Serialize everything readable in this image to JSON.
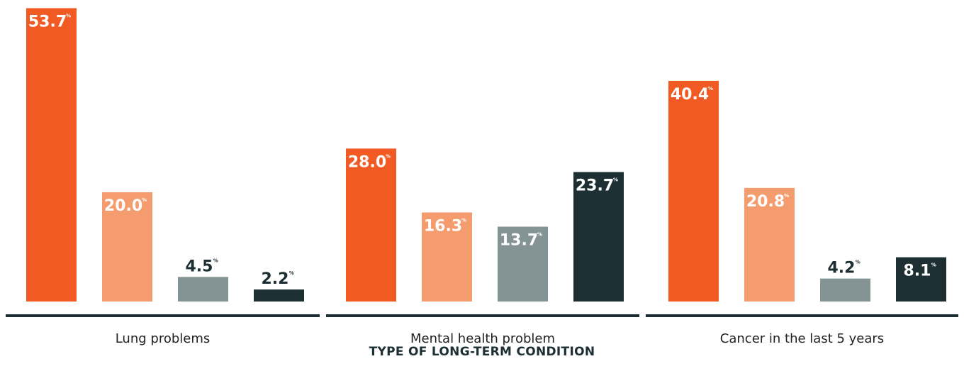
{
  "chart_data": {
    "type": "bar",
    "categories": [
      "Lung problems",
      "Mental health problem",
      "Cancer in the last 5 years"
    ],
    "series": [
      {
        "values": [
          53.7,
          28.0,
          40.4
        ],
        "color": "#f15a22"
      },
      {
        "values": [
          20.0,
          16.3,
          20.8
        ],
        "color": "#f59c6e"
      },
      {
        "values": [
          4.5,
          13.7,
          4.2
        ],
        "color": "#849495"
      },
      {
        "values": [
          2.2,
          23.7,
          8.1
        ],
        "color": "#1d2f33"
      }
    ],
    "value_labels": [
      [
        "53.7",
        "28.0",
        "40.4"
      ],
      [
        "20.0",
        "16.3",
        "20.8"
      ],
      [
        "4.5",
        "13.7",
        "4.2"
      ],
      [
        "2.2",
        "23.7",
        "8.1"
      ]
    ],
    "value_suffix": "%",
    "xlabel": "TYPE OF LONG-TERM CONDITION",
    "ylabel": "",
    "ylim": [
      0,
      55
    ],
    "grid": false,
    "legend": "none"
  }
}
